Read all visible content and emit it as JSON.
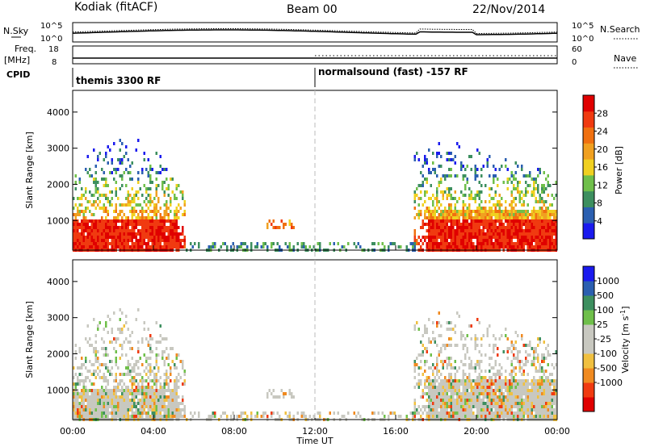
{
  "header": {
    "title": "Kodiak (fitACF)",
    "beam": "Beam 00",
    "date": "22/Nov/2014"
  },
  "side_labels": {
    "nsky": "N.Sky",
    "freq": "Freq.",
    "mhz": "[MHz]",
    "cpid": "CPID",
    "nsearch": "N.Search",
    "nave": "Nave"
  },
  "noise_panel": {
    "left_ticks": [
      "10^5",
      "10^0"
    ],
    "right_ticks": [
      "10^5",
      "10^0"
    ]
  },
  "freq_panel": {
    "left_ticks": [
      "18",
      "8"
    ],
    "right_ticks": [
      "60",
      "0"
    ]
  },
  "cpid_panel": {
    "mode1": "themis 3300 RF",
    "mode2": "normalsound (fast) -157 RF"
  },
  "colors": {
    "power": [
      "#1a1aee",
      "#2b5fb0",
      "#3d8f5f",
      "#6fbf4a",
      "#f0d020",
      "#f0a020",
      "#f07010",
      "#f03a10",
      "#e00000"
    ],
    "velocity": [
      "#e00000",
      "#f03a10",
      "#f08a20",
      "#f0c040",
      "#c8c8c0",
      "#c8c8c0",
      "#6fbf4a",
      "#3d8f5f",
      "#2b5fb0",
      "#1a1aee"
    ]
  },
  "chart_data": [
    {
      "type": "heatmap",
      "quantity": "power",
      "ylabel": "Slant Range [km]",
      "xlabel": "",
      "xlim": [
        "00:00",
        "24:00"
      ],
      "ylim": [
        180,
        4600
      ],
      "yticks": [
        "4000",
        "3000",
        "2000",
        "1000"
      ],
      "colorbar_label": "Power [dB]",
      "colorbar_ticks": [
        "28",
        "24",
        "20",
        "16",
        "12",
        "8",
        "4"
      ],
      "colorbar_range": [
        0,
        32
      ]
    },
    {
      "type": "heatmap",
      "quantity": "velocity",
      "ylabel": "Slant Range [km]",
      "xlabel": "Time UT",
      "xlim": [
        "00:00",
        "24:00"
      ],
      "ylim": [
        180,
        4600
      ],
      "yticks": [
        "4000",
        "3000",
        "2000",
        "1000"
      ],
      "xticks": [
        "00:00",
        "04:00",
        "08:00",
        "12:00",
        "16:00",
        "20:00",
        "00:00"
      ],
      "colorbar_label": "Velocity [m s^-1]",
      "colorbar_ticks": [
        "1000",
        "500",
        "100",
        "25",
        "-25",
        "-100",
        "-500",
        "-1000"
      ]
    }
  ]
}
